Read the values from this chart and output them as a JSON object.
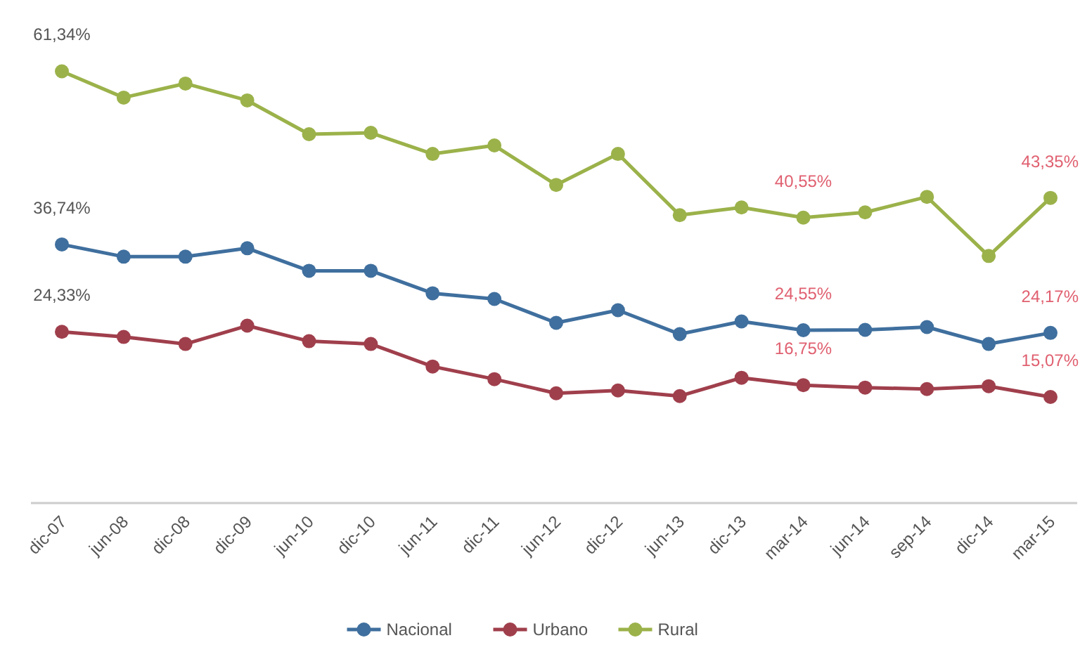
{
  "chart_data": {
    "type": "line",
    "categories": [
      "dic-07",
      "jun-08",
      "dic-08",
      "dic-09",
      "jun-10",
      "dic-10",
      "jun-11",
      "dic-11",
      "jun-12",
      "dic-12",
      "jun-13",
      "dic-13",
      "mar-14",
      "jun-14",
      "sep-14",
      "dic-14",
      "mar-15"
    ],
    "series": [
      {
        "name": "Nacional",
        "color": "#3f6f9e",
        "values": [
          36.74,
          35.0,
          35.0,
          36.2,
          33.0,
          33.0,
          29.8,
          29.0,
          25.6,
          27.4,
          24.0,
          25.8,
          24.55,
          24.6,
          25.0,
          22.6,
          24.17
        ],
        "value_labels": [
          "36,74%",
          null,
          null,
          null,
          null,
          null,
          null,
          null,
          null,
          null,
          null,
          null,
          "24,55%",
          null,
          null,
          null,
          "24,17%"
        ]
      },
      {
        "name": "Urbano",
        "color": "#a03f4c",
        "values": [
          24.33,
          23.6,
          22.6,
          25.2,
          23.0,
          22.6,
          19.4,
          17.6,
          15.6,
          16.0,
          15.2,
          17.8,
          16.75,
          16.4,
          16.2,
          16.6,
          15.07
        ],
        "value_labels": [
          "24,33%",
          null,
          null,
          null,
          null,
          null,
          null,
          null,
          null,
          null,
          null,
          null,
          "16,75%",
          null,
          null,
          null,
          "15,07%"
        ]
      },
      {
        "name": "Rural",
        "color": "#9bb24a",
        "values": [
          61.34,
          57.6,
          59.6,
          57.2,
          52.4,
          52.6,
          49.6,
          50.8,
          45.2,
          49.6,
          40.9,
          42.0,
          40.55,
          41.3,
          43.5,
          35.1,
          43.35
        ],
        "value_labels": [
          "61,34%",
          null,
          null,
          null,
          null,
          null,
          null,
          null,
          null,
          null,
          null,
          null,
          "40,55%",
          null,
          null,
          null,
          "43,35%"
        ]
      }
    ],
    "legend": "bottom",
    "marker": "circle",
    "grid": false
  }
}
